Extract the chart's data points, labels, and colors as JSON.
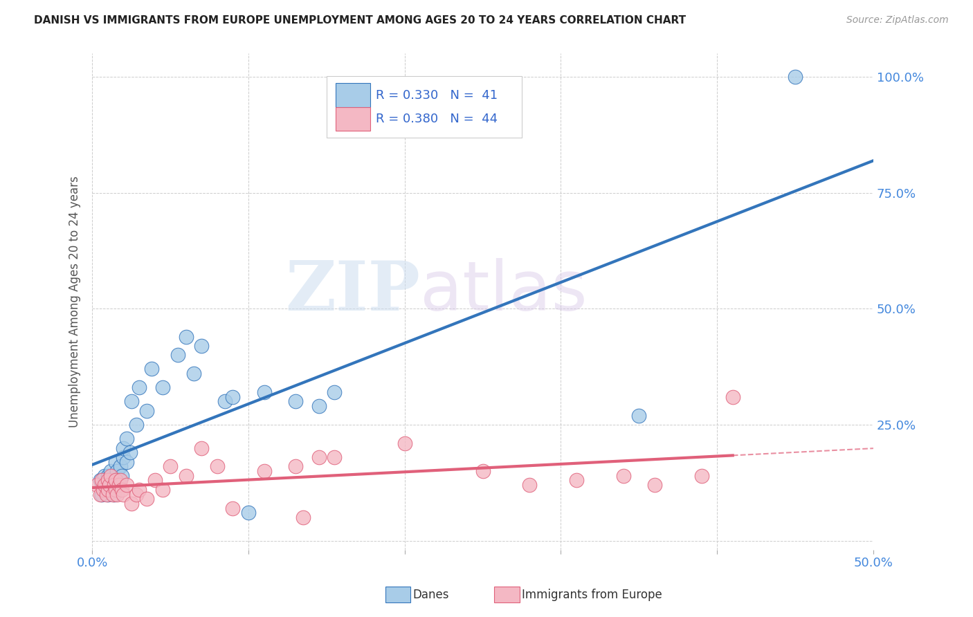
{
  "title": "DANISH VS IMMIGRANTS FROM EUROPE UNEMPLOYMENT AMONG AGES 20 TO 24 YEARS CORRELATION CHART",
  "source": "Source: ZipAtlas.com",
  "ylabel": "Unemployment Among Ages 20 to 24 years",
  "xlim": [
    0.0,
    0.5
  ],
  "ylim": [
    -0.02,
    1.05
  ],
  "xticks": [
    0.0,
    0.1,
    0.2,
    0.3,
    0.4,
    0.5
  ],
  "xticklabels": [
    "0.0%",
    "",
    "",
    "",
    "",
    "50.0%"
  ],
  "yticks_right": [
    0.0,
    0.25,
    0.5,
    0.75,
    1.0
  ],
  "yticklabels_right": [
    "",
    "25.0%",
    "50.0%",
    "75.0%",
    "100.0%"
  ],
  "legend_R1": "R = 0.330",
  "legend_N1": "N =  41",
  "legend_R2": "R = 0.380",
  "legend_N2": "N =  44",
  "legend_label1": "Danes",
  "legend_label2": "Immigrants from Europe",
  "color_danes": "#a8cce8",
  "color_immigrants": "#f4b8c4",
  "color_danes_line": "#3375bb",
  "color_immigrants_line": "#e0607a",
  "watermark_zip": "ZIP",
  "watermark_atlas": "atlas",
  "danes_x": [
    0.005,
    0.006,
    0.007,
    0.008,
    0.009,
    0.01,
    0.01,
    0.011,
    0.012,
    0.013,
    0.014,
    0.015,
    0.015,
    0.016,
    0.017,
    0.018,
    0.019,
    0.02,
    0.02,
    0.022,
    0.022,
    0.024,
    0.025,
    0.028,
    0.03,
    0.035,
    0.038,
    0.045,
    0.055,
    0.06,
    0.065,
    0.07,
    0.085,
    0.09,
    0.1,
    0.11,
    0.13,
    0.145,
    0.155,
    0.35,
    0.45
  ],
  "danes_y": [
    0.13,
    0.1,
    0.12,
    0.14,
    0.11,
    0.1,
    0.14,
    0.13,
    0.15,
    0.12,
    0.1,
    0.13,
    0.17,
    0.15,
    0.13,
    0.16,
    0.14,
    0.18,
    0.2,
    0.17,
    0.22,
    0.19,
    0.3,
    0.25,
    0.33,
    0.28,
    0.37,
    0.33,
    0.4,
    0.44,
    0.36,
    0.42,
    0.3,
    0.31,
    0.06,
    0.32,
    0.3,
    0.29,
    0.32,
    0.27,
    1.0
  ],
  "immigrants_x": [
    0.003,
    0.005,
    0.006,
    0.007,
    0.008,
    0.009,
    0.01,
    0.01,
    0.011,
    0.012,
    0.013,
    0.014,
    0.015,
    0.015,
    0.016,
    0.017,
    0.018,
    0.019,
    0.02,
    0.022,
    0.025,
    0.028,
    0.03,
    0.035,
    0.04,
    0.045,
    0.05,
    0.06,
    0.07,
    0.08,
    0.09,
    0.11,
    0.13,
    0.135,
    0.145,
    0.155,
    0.2,
    0.25,
    0.28,
    0.31,
    0.34,
    0.36,
    0.39,
    0.41
  ],
  "immigrants_y": [
    0.12,
    0.1,
    0.13,
    0.11,
    0.12,
    0.1,
    0.11,
    0.13,
    0.12,
    0.14,
    0.1,
    0.12,
    0.11,
    0.13,
    0.1,
    0.12,
    0.13,
    0.11,
    0.1,
    0.12,
    0.08,
    0.1,
    0.11,
    0.09,
    0.13,
    0.11,
    0.16,
    0.14,
    0.2,
    0.16,
    0.07,
    0.15,
    0.16,
    0.05,
    0.18,
    0.18,
    0.21,
    0.15,
    0.12,
    0.13,
    0.14,
    0.12,
    0.14,
    0.31
  ]
}
